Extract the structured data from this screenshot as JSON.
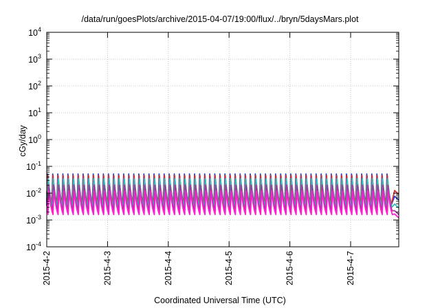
{
  "chart_data": {
    "type": "line",
    "title": "/data/run/goesPlots/archive/2015-04-07/19:00/flux/../bryn/5daysMars.plot",
    "xlabel": "Coordinated Universal Time (UTC)",
    "ylabel": "cGy/day",
    "y_scale": "log",
    "ylim_exponents": [
      -4,
      4
    ],
    "y_ticks": [
      {
        "base": "10",
        "exp": "-4"
      },
      {
        "base": "10",
        "exp": "-3"
      },
      {
        "base": "10",
        "exp": "-2"
      },
      {
        "base": "10",
        "exp": "-1"
      },
      {
        "base": "10",
        "exp": "0"
      },
      {
        "base": "10",
        "exp": "1"
      },
      {
        "base": "10",
        "exp": "2"
      },
      {
        "base": "10",
        "exp": "3"
      },
      {
        "base": "10",
        "exp": "4"
      }
    ],
    "x_range": [
      "2015-04-02 00:00",
      "2015-04-07 19:00"
    ],
    "x_ticks": [
      "2015-4-2",
      "2015-4-3",
      "2015-4-4",
      "2015-4-5",
      "2015-4-6",
      "2015-4-7"
    ],
    "grid": true,
    "pattern": {
      "description": "sawtooth: sharp rise then decay, repeating",
      "cycles_per_day": 12
    },
    "series": [
      {
        "color": "#2a3fd6",
        "peak": 0.052,
        "trough": 0.0035,
        "end": 0.0055
      },
      {
        "color": "#d62f2f",
        "peak": 0.046,
        "trough": 0.004,
        "end": 0.009
      },
      {
        "color": "#2fbfbf",
        "peak": 0.035,
        "trough": 0.003,
        "end": 0.0028
      },
      {
        "color": "#a0369a",
        "peak": 0.02,
        "trough": 0.0022,
        "end": 0.0016
      },
      {
        "color": "#ff1fd2",
        "peak": 0.012,
        "trough": 0.0016,
        "end": 0.0012
      }
    ]
  }
}
